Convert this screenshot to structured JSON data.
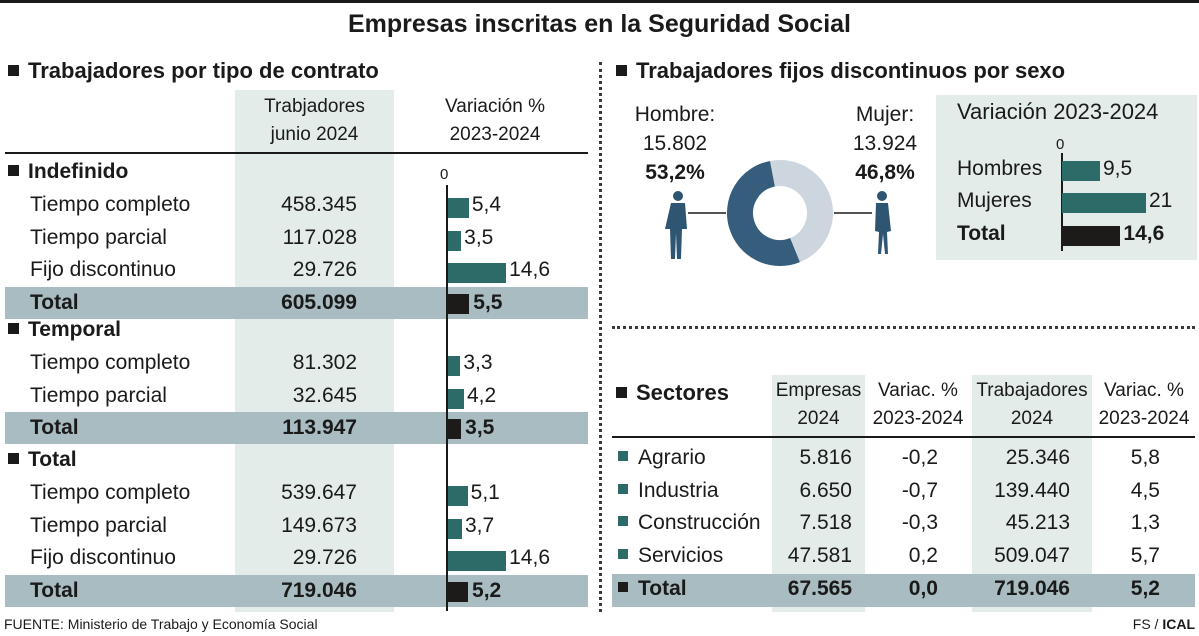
{
  "title": "Empresas inscritas en la Seguridad Social",
  "contratos": {
    "subtitle": "Trabajadores por tipo de contrato",
    "col1_header": [
      "Trabjadores",
      "junio 2024"
    ],
    "col2_header": [
      "Variación %",
      "2023-2024"
    ],
    "zero_label": "0"
  },
  "sexo": {
    "subtitle": "Trabajadores fijos discontinuos por sexo",
    "hombre_label": "Hombre:",
    "hombre_value": "15.802",
    "hombre_pct": "53,2%",
    "mujer_label": "Mujer:",
    "mujer_value": "13.924",
    "mujer_pct": "46,8%",
    "variacion_title": "Variación 2023-2024",
    "zero_label": "0"
  },
  "sectores": {
    "title": "Sectores",
    "headers": [
      [
        "Empresas",
        "2024"
      ],
      [
        "Variac. %",
        "2023-2024"
      ],
      [
        "Trabajadores",
        "2024"
      ],
      [
        "Variac. %",
        "2023-2024"
      ]
    ],
    "rows": [
      {
        "name": "Agrario",
        "empresas": "5.816",
        "var_emp": "-0,2",
        "trabajadores": "25.346",
        "var_trab": "5,8"
      },
      {
        "name": "Industria",
        "empresas": "6.650",
        "var_emp": "-0,7",
        "trabajadores": "139.440",
        "var_trab": "4,5"
      },
      {
        "name": "Construcción",
        "empresas": "7.518",
        "var_emp": "-0,3",
        "trabajadores": "45.213",
        "var_trab": "1,3"
      },
      {
        "name": "Servicios",
        "empresas": "47.581",
        "var_emp": "0,2",
        "trabajadores": "509.047",
        "var_trab": "5,7"
      }
    ],
    "total": {
      "name": "Total",
      "empresas": "67.565",
      "var_emp": "0,0",
      "trabajadores": "719.046",
      "var_trab": "5,2"
    }
  },
  "footer": {
    "source": "FUENTE: Ministerio de Trabajo y Economía Social",
    "credit_prefix": "FS / ",
    "credit_bold": "ICAL"
  },
  "colors": {
    "bar": "#2c6b68",
    "bar_total": "#1d1b19",
    "total_row": "#a9bcc1",
    "light_column": "#e3ece9",
    "donut_hombre": "#365d7c",
    "donut_mujer": "#cdd5df"
  },
  "chart_data": [
    {
      "type": "bar",
      "title": "Trabajadores por tipo de contrato",
      "xlim": [
        0,
        15
      ],
      "groups": [
        {
          "name": "Indefinido",
          "rows": [
            {
              "label": "Tiempo completo",
              "trabajadores": "458.345",
              "variacion": 5.4
            },
            {
              "label": "Tiempo parcial",
              "trabajadores": "117.028",
              "variacion": 3.5
            },
            {
              "label": "Fijo discontinuo",
              "trabajadores": "29.726",
              "variacion": 14.6
            }
          ],
          "total": {
            "label": "Total",
            "trabajadores": "605.099",
            "variacion": 5.5
          }
        },
        {
          "name": "Temporal",
          "rows": [
            {
              "label": "Tiempo completo",
              "trabajadores": "81.302",
              "variacion": 3.3
            },
            {
              "label": "Tiempo parcial",
              "trabajadores": "32.645",
              "variacion": 4.2
            }
          ],
          "total": {
            "label": "Total",
            "trabajadores": "113.947",
            "variacion": 3.5
          }
        },
        {
          "name": "Total",
          "rows": [
            {
              "label": "Tiempo completo",
              "trabajadores": "539.647",
              "variacion": 5.1
            },
            {
              "label": "Tiempo parcial",
              "trabajadores": "149.673",
              "variacion": 3.7
            },
            {
              "label": "Fijo discontinuo",
              "trabajadores": "29.726",
              "variacion": 14.6
            }
          ],
          "total": {
            "label": "Total",
            "trabajadores": "719.046",
            "variacion": 5.2
          }
        }
      ]
    },
    {
      "type": "pie",
      "title": "Trabajadores fijos discontinuos por sexo",
      "slices": [
        {
          "label": "Hombre",
          "value": 15802,
          "percent": 53.2
        },
        {
          "label": "Mujer",
          "value": 13924,
          "percent": 46.8
        }
      ]
    },
    {
      "type": "bar",
      "title": "Variación 2023-2024",
      "categories": [
        "Hombres",
        "Mujeres",
        "Total"
      ],
      "values": [
        9.5,
        21,
        14.6
      ],
      "xlim": [
        0,
        21
      ]
    }
  ]
}
